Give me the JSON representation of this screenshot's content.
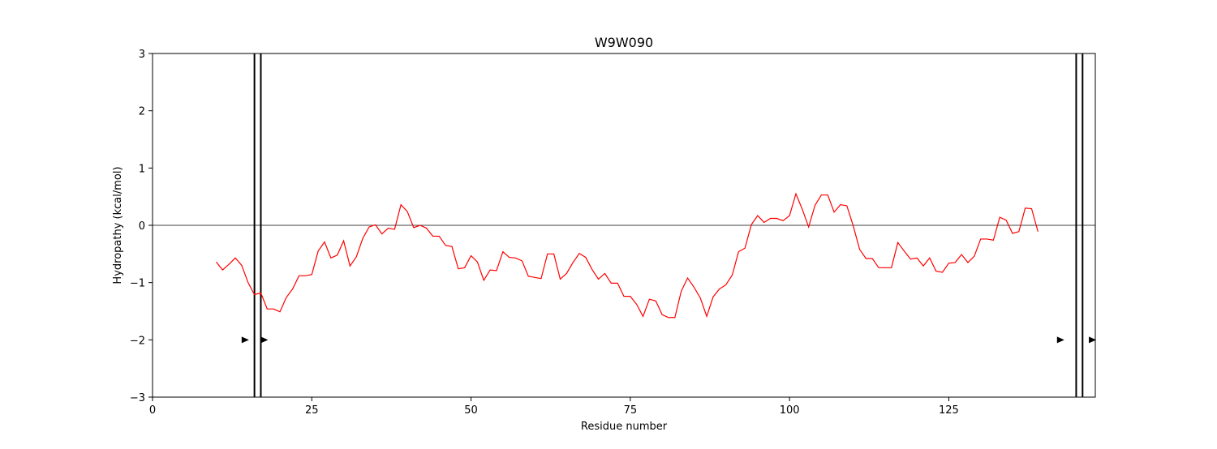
{
  "chart_data": {
    "type": "line",
    "title": "W9W090",
    "xlabel": "Residue number",
    "ylabel": "Hydropathy (kcal/mol)",
    "xlim": [
      0,
      148
    ],
    "ylim": [
      -3,
      3
    ],
    "xticks": [
      0,
      25,
      50,
      75,
      100,
      125
    ],
    "xtick_labels": [
      "0",
      "25",
      "50",
      "75",
      "100",
      "125"
    ],
    "yticks": [
      -3,
      -2,
      -1,
      0,
      1,
      2,
      3
    ],
    "ytick_labels": [
      "−3",
      "−2",
      "−1",
      "0",
      "1",
      "2",
      "3"
    ],
    "grid": false,
    "zero_line": 0,
    "series": [
      {
        "color": "#ff0000",
        "x": [
          10,
          11,
          12,
          13,
          14,
          15,
          16,
          17,
          18,
          19,
          20,
          21,
          22,
          23,
          24,
          25,
          26,
          27,
          28,
          29,
          30,
          31,
          32,
          33,
          34,
          35,
          36,
          37,
          38,
          39,
          40,
          41,
          42,
          43,
          44,
          45,
          46,
          47,
          48,
          49,
          50,
          51,
          52,
          53,
          54,
          55,
          56,
          57,
          58,
          59,
          60,
          61,
          62,
          63,
          64,
          65,
          66,
          67,
          68,
          69,
          70,
          71,
          72,
          73,
          74,
          75,
          76,
          77,
          78,
          79,
          80,
          81,
          82,
          83,
          84,
          85,
          86,
          87,
          88,
          89,
          90,
          91,
          92,
          93,
          94,
          95,
          96,
          97,
          98,
          99,
          100,
          101,
          102,
          103,
          104,
          105,
          106,
          107,
          108,
          109,
          110,
          111,
          112,
          113,
          114,
          115,
          116,
          117,
          118,
          119,
          120,
          121,
          122,
          123,
          124,
          125,
          126,
          127,
          128,
          129,
          130,
          131,
          132,
          133,
          134,
          135,
          136,
          137,
          138,
          139
        ],
        "y": [
          -0.64,
          -0.78,
          -0.68,
          -0.57,
          -0.7,
          -1.0,
          -1.21,
          -1.18,
          -1.46,
          -1.46,
          -1.51,
          -1.26,
          -1.11,
          -0.88,
          -0.88,
          -0.86,
          -0.45,
          -0.29,
          -0.57,
          -0.52,
          -0.27,
          -0.71,
          -0.55,
          -0.23,
          -0.03,
          0.01,
          -0.15,
          -0.05,
          -0.07,
          0.36,
          0.24,
          -0.04,
          0.0,
          -0.05,
          -0.19,
          -0.19,
          -0.35,
          -0.37,
          -0.76,
          -0.74,
          -0.53,
          -0.64,
          -0.96,
          -0.78,
          -0.79,
          -0.46,
          -0.56,
          -0.57,
          -0.62,
          -0.89,
          -0.91,
          -0.93,
          -0.5,
          -0.5,
          -0.94,
          -0.84,
          -0.65,
          -0.49,
          -0.56,
          -0.77,
          -0.94,
          -0.84,
          -1.01,
          -1.01,
          -1.24,
          -1.24,
          -1.38,
          -1.59,
          -1.29,
          -1.32,
          -1.56,
          -1.61,
          -1.61,
          -1.15,
          -0.92,
          -1.08,
          -1.27,
          -1.59,
          -1.25,
          -1.11,
          -1.04,
          -0.87,
          -0.46,
          -0.4,
          0.01,
          0.17,
          0.05,
          0.12,
          0.12,
          0.08,
          0.17,
          0.55,
          0.28,
          -0.03,
          0.35,
          0.53,
          0.53,
          0.23,
          0.36,
          0.34,
          -0.01,
          -0.42,
          -0.58,
          -0.58,
          -0.74,
          -0.74,
          -0.74,
          -0.3,
          -0.45,
          -0.59,
          -0.57,
          -0.71,
          -0.57,
          -0.8,
          -0.82,
          -0.66,
          -0.65,
          -0.51,
          -0.65,
          -0.54,
          -0.24,
          -0.24,
          -0.26,
          0.14,
          0.09,
          -0.14,
          -0.11,
          0.3,
          0.29,
          -0.11
        ]
      }
    ],
    "vertical_lines": [
      16,
      17,
      145,
      146
    ],
    "markers": [
      {
        "x": 14.5,
        "y": -2,
        "shape": "triangle-right"
      },
      {
        "x": 17.5,
        "y": -2,
        "shape": "triangle-right"
      },
      {
        "x": 142.5,
        "y": -2,
        "shape": "triangle-right"
      },
      {
        "x": 147.5,
        "y": -2,
        "shape": "triangle-right"
      }
    ]
  }
}
